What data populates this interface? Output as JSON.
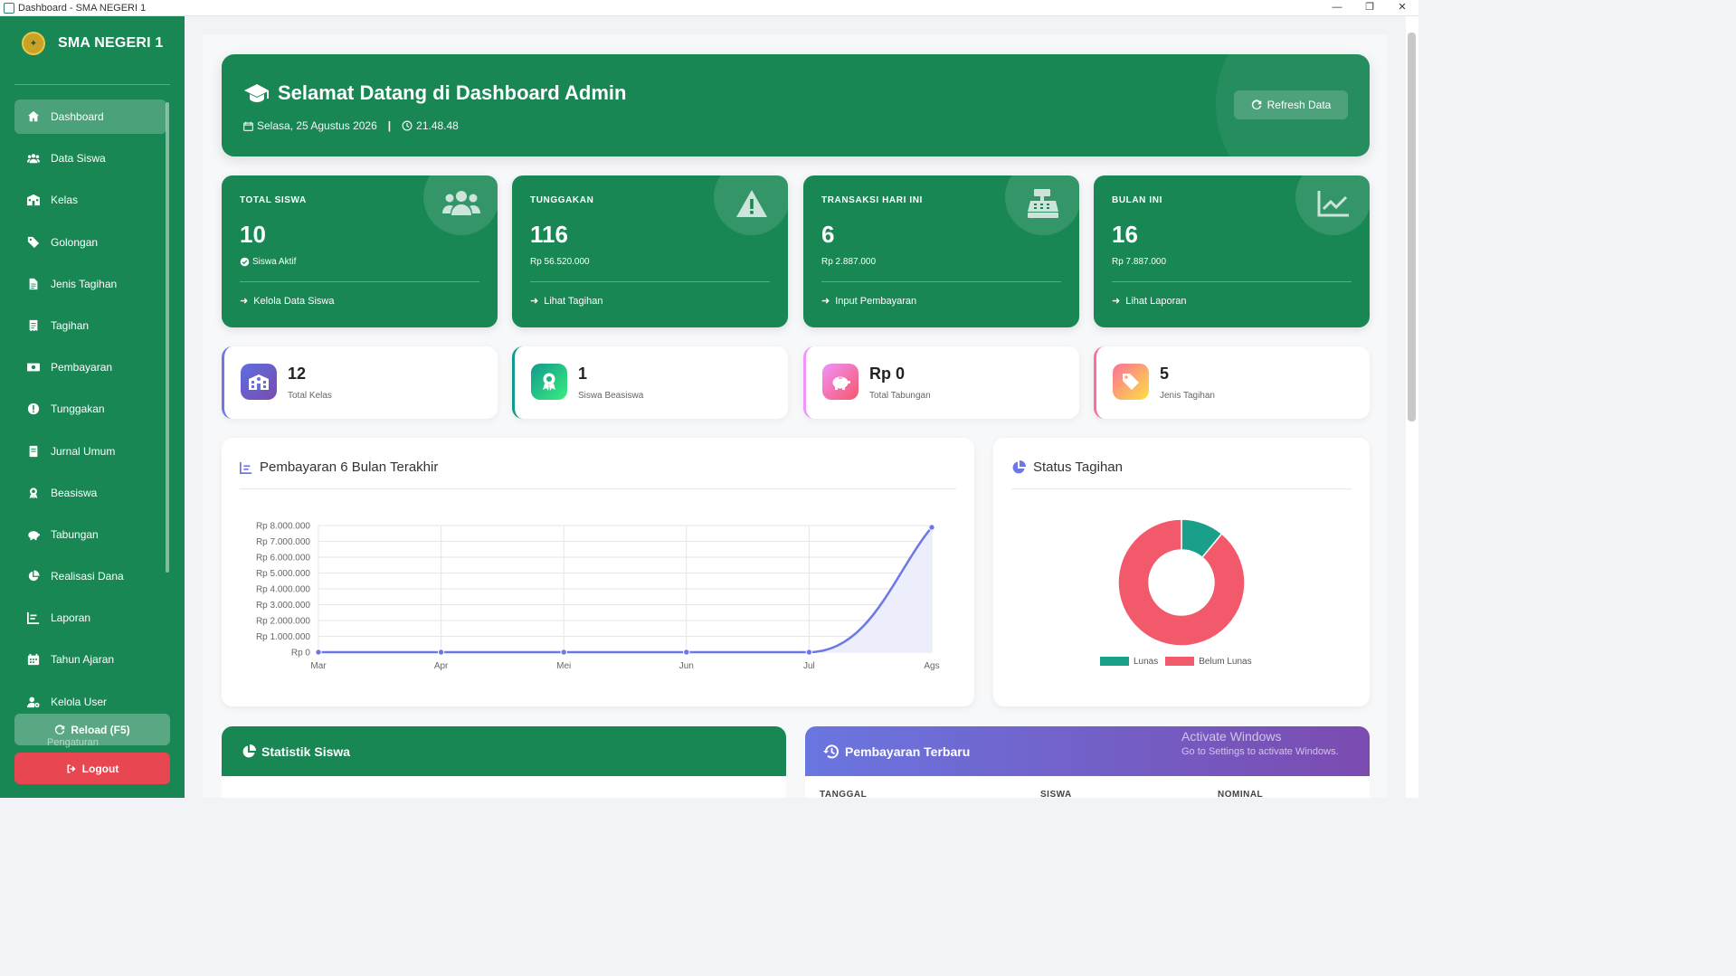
{
  "window": {
    "title": "Dashboard - SMA NEGERI 1",
    "controls": [
      "—",
      "❐",
      "✕"
    ]
  },
  "brand": {
    "name": "SMA NEGERI 1"
  },
  "sidebar": {
    "items": [
      {
        "label": "Dashboard",
        "icon": "home-icon",
        "active": true
      },
      {
        "label": "Data Siswa",
        "icon": "users-icon"
      },
      {
        "label": "Kelas",
        "icon": "school-icon"
      },
      {
        "label": "Golongan",
        "icon": "tag-icon"
      },
      {
        "label": "Jenis Tagihan",
        "icon": "file-icon"
      },
      {
        "label": "Tagihan",
        "icon": "invoice-icon"
      },
      {
        "label": "Pembayaran",
        "icon": "money-icon"
      },
      {
        "label": "Tunggakan",
        "icon": "alert-icon"
      },
      {
        "label": "Jurnal Umum",
        "icon": "book-icon"
      },
      {
        "label": "Beasiswa",
        "icon": "award-icon"
      },
      {
        "label": "Tabungan",
        "icon": "piggy-icon"
      },
      {
        "label": "Realisasi Dana",
        "icon": "pie-icon"
      },
      {
        "label": "Laporan",
        "icon": "chart-icon"
      },
      {
        "label": "Tahun Ajaran",
        "icon": "calendar-icon"
      },
      {
        "label": "Kelola User",
        "icon": "user-gear-icon"
      }
    ],
    "partial_label": "Pengaturan",
    "reload_label": "Reload (F5)",
    "logout_label": "Logout"
  },
  "hero": {
    "title": "Selamat Datang di Dashboard Admin",
    "date": "Selasa, 25 Agustus 2026",
    "separator": "|",
    "time": "21.48.48",
    "refresh_label": "Refresh Data"
  },
  "stats": [
    {
      "label": "TOTAL SISWA",
      "value": "10",
      "sub": "Siswa Aktif",
      "link": "Kelola Data Siswa",
      "icon": "users-icon"
    },
    {
      "label": "TUNGGAKAN",
      "value": "116",
      "sub": "Rp 56.520.000",
      "link": "Lihat Tagihan",
      "icon": "warning-icon"
    },
    {
      "label": "TRANSAKSI HARI INI",
      "value": "6",
      "sub": "Rp 2.887.000",
      "link": "Input Pembayaran",
      "icon": "cash-register-icon"
    },
    {
      "label": "BULAN INI",
      "value": "16",
      "sub": "Rp 7.887.000",
      "link": "Lihat Laporan",
      "icon": "line-chart-icon"
    }
  ],
  "mini": [
    {
      "value": "12",
      "label": "Total Kelas",
      "icon": "school-icon",
      "color_from": "#5b6fe0",
      "color_to": "#7b4bb0",
      "border": "#6b78e5"
    },
    {
      "value": "1",
      "label": "Siswa Beasiswa",
      "icon": "award-icon",
      "color_from": "#11998e",
      "color_to": "#38ef7d",
      "border": "#11998e"
    },
    {
      "value": "Rp 0",
      "label": "Total Tabungan",
      "icon": "piggy-icon",
      "color_from": "#f093fb",
      "color_to": "#f5576c",
      "border": "#f093fb"
    },
    {
      "value": "5",
      "label": "Jenis Tagihan",
      "icon": "tags-icon",
      "color_from": "#fa709a",
      "color_to": "#fee140",
      "border": "#fa709a"
    }
  ],
  "payments_card": {
    "title": "Pembayaran 6 Bulan Terakhir"
  },
  "status_card": {
    "title": "Status Tagihan"
  },
  "chart_data": [
    {
      "type": "line",
      "title": "Pembayaran 6 Bulan Terakhir",
      "categories": [
        "Mar",
        "Apr",
        "Mei",
        "Jun",
        "Jul",
        "Ags"
      ],
      "values": [
        0,
        0,
        0,
        0,
        0,
        7887000
      ],
      "ylim": [
        0,
        8000000
      ],
      "yticks": [
        "Rp 0",
        "Rp 1.000.000",
        "Rp 2.000.000",
        "Rp 3.000.000",
        "Rp 4.000.000",
        "Rp 5.000.000",
        "Rp 6.000.000",
        "Rp 7.000.000",
        "Rp 8.000.000"
      ],
      "color": "#6b78e5",
      "fill": "#eceefb",
      "grid": true
    },
    {
      "type": "pie",
      "variant": "doughnut",
      "title": "Status Tagihan",
      "categories": [
        "Lunas",
        "Belum Lunas"
      ],
      "values": [
        11,
        89
      ],
      "colors": [
        "#1aa08a",
        "#f25a6b"
      ],
      "legend": "bottom"
    }
  ],
  "bottom": {
    "stats_title": "Statistik Siswa",
    "recent_title": "Pembayaran Terbaru",
    "recent_columns": [
      "TANGGAL",
      "SISWA",
      "NOMINAL"
    ]
  },
  "watermark": {
    "line1": "Activate Windows",
    "line2": "Go to Settings to activate Windows."
  }
}
